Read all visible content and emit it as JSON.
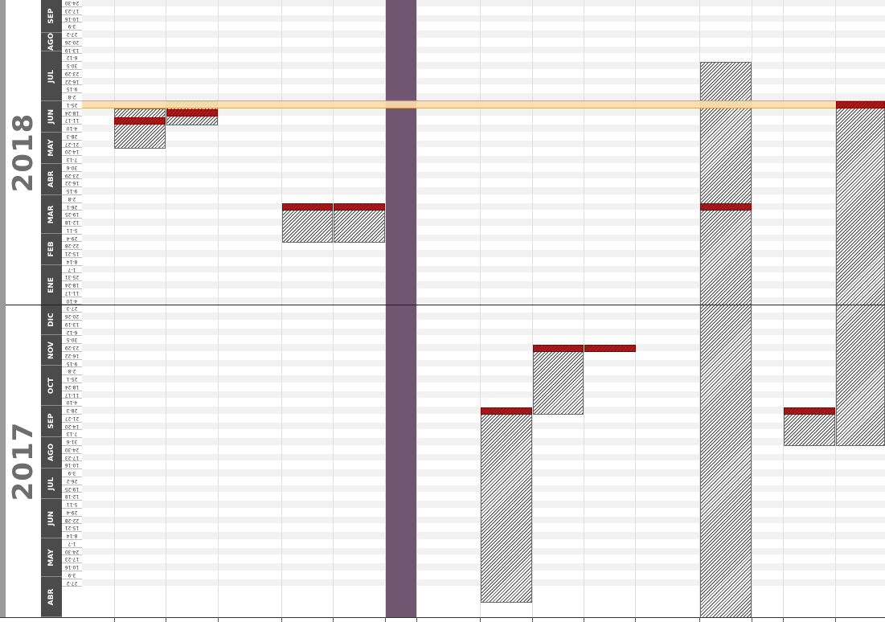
{
  "years": [
    "2017",
    "2018"
  ],
  "months": [
    "SEP",
    "AGO",
    "JUL",
    "JUN",
    "MAY",
    "ABR",
    "MAR",
    "FEB",
    "ENE",
    "DIC",
    "NOV",
    "OCT",
    "SEP",
    "AGO",
    "JUL",
    "JUN",
    "MAY",
    "ABR"
  ],
  "weeks": [
    "24-30",
    "17-23",
    "10-16",
    "3-9",
    "27-2",
    "20-26",
    "13-19",
    "6-12",
    "30-5",
    "23-29",
    "16-22",
    "9-15",
    "2-8",
    "25-1",
    "18-24",
    "11-17",
    "4-10",
    "28-3",
    "21-27",
    "14-20",
    "7-13",
    "30-6",
    "23-29",
    "16-22",
    "9-15",
    "2-8",
    "26-1",
    "19-25",
    "12-18",
    "5-11",
    "29-4",
    "22-28",
    "15-21",
    "8-14",
    "1-7",
    "25-31",
    "18-24",
    "11-17",
    "4-10",
    "27-3",
    "20-26",
    "13-19",
    "6-12",
    "30-5",
    "23-29",
    "16-22",
    "9-15",
    "2-8",
    "25-1",
    "18-24",
    "11-17",
    "4-10",
    "28-3",
    "21-27",
    "14-20",
    "7-13",
    "31-6",
    "24-30",
    "17-23",
    "10-16",
    "3-9",
    "26-2",
    "19-25",
    "12-18",
    "5-11",
    "29-4",
    "22-28",
    "15-21",
    "8-14",
    "1-7",
    "24-30",
    "17-23",
    "10-16",
    "3-9",
    "27-2"
  ],
  "colors": {
    "purple_column": "#705671",
    "today_row": "#fbddad",
    "red_marker": "#b11a1a",
    "month_header": "#4b4b4b",
    "year_text": "#6d6d6d"
  }
}
